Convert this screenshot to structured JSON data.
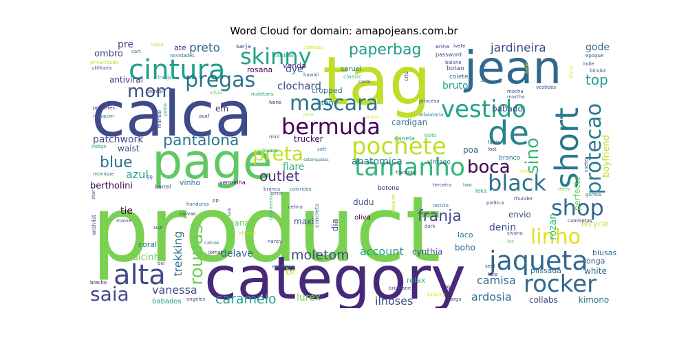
{
  "title": "Word Cloud for domain: amapojeans.com.br",
  "chart_data": {
    "type": "wordcloud",
    "title": "Word Cloud for domain: amapojeans.com.br",
    "words": [
      {
        "text": "product",
        "weight": 1.0,
        "color": "#7ad151"
      },
      {
        "text": "category",
        "weight": 0.78,
        "color": "#482878"
      },
      {
        "text": "tag",
        "weight": 0.7,
        "color": "#bddf26"
      },
      {
        "text": "calca",
        "weight": 0.66,
        "color": "#3e4a89"
      },
      {
        "text": "page",
        "weight": 0.56,
        "color": "#5ec962"
      },
      {
        "text": "jean",
        "weight": 0.55,
        "color": "#31688e"
      },
      {
        "text": "cintura",
        "weight": 0.35,
        "color": "#1f9e89"
      },
      {
        "text": "de",
        "weight": 0.35,
        "color": "#26828e"
      },
      {
        "text": "alta",
        "weight": 0.34,
        "color": "#3e4a89"
      },
      {
        "text": "short",
        "weight": 0.34,
        "color": "#2a788e"
      },
      {
        "text": "jaqueta",
        "weight": 0.33,
        "color": "#31688e"
      },
      {
        "text": "tamanho",
        "weight": 0.32,
        "color": "#35b779"
      },
      {
        "text": "rocker",
        "weight": 0.31,
        "color": "#31688e"
      },
      {
        "text": "bermuda",
        "weight": 0.31,
        "color": "#440154"
      },
      {
        "text": "vestido",
        "weight": 0.31,
        "color": "#20a386"
      },
      {
        "text": "pochete",
        "weight": 0.31,
        "color": "#bddf26"
      },
      {
        "text": "skinny",
        "weight": 0.28,
        "color": "#1fa187"
      },
      {
        "text": "black",
        "weight": 0.28,
        "color": "#2c728e"
      },
      {
        "text": "shop",
        "weight": 0.27,
        "color": "#31688e"
      },
      {
        "text": "linho",
        "weight": 0.27,
        "color": "#dde318"
      },
      {
        "text": "protecao",
        "weight": 0.27,
        "color": "#2a788e"
      },
      {
        "text": "saia",
        "weight": 0.26,
        "color": "#3e4a89"
      },
      {
        "text": "pregas",
        "weight": 0.26,
        "color": "#2c728e"
      },
      {
        "text": "mascara",
        "weight": 0.25,
        "color": "#2c728e"
      },
      {
        "text": "mom",
        "weight": 0.24,
        "color": "#3b528b"
      },
      {
        "text": "preta",
        "weight": 0.24,
        "color": "#bddf26"
      },
      {
        "text": "boca",
        "weight": 0.23,
        "color": "#440154"
      },
      {
        "text": "sino",
        "weight": 0.22,
        "color": "#35b779"
      },
      {
        "text": "roupas",
        "weight": 0.22,
        "color": "#6ece58"
      },
      {
        "text": "paperbag",
        "weight": 0.2,
        "color": "#1f9e89"
      },
      {
        "text": "pantalona",
        "weight": 0.2,
        "color": "#2a788e"
      },
      {
        "text": "blue",
        "weight": 0.2,
        "color": "#2c728e"
      },
      {
        "text": "franja",
        "weight": 0.2,
        "color": "#3e4a89"
      },
      {
        "text": "caramelo",
        "weight": 0.19,
        "color": "#1f9e89"
      },
      {
        "text": "moletom",
        "weight": 0.19,
        "color": "#3e4a89"
      },
      {
        "text": "outlet",
        "weight": 0.18,
        "color": "#482878"
      },
      {
        "text": "top",
        "weight": 0.18,
        "color": "#1f9e89"
      },
      {
        "text": "account",
        "weight": 0.17,
        "color": "#1f9e89"
      },
      {
        "text": "ardosia",
        "weight": 0.17,
        "color": "#2c728e"
      },
      {
        "text": "ilhoses",
        "weight": 0.17,
        "color": "#3e4a89"
      },
      {
        "text": "vanessa",
        "weight": 0.16,
        "color": "#3e4a89"
      },
      {
        "text": "camisa",
        "weight": 0.16,
        "color": "#31688e"
      },
      {
        "text": "preto",
        "weight": 0.16,
        "color": "#31688e"
      },
      {
        "text": "jardineira",
        "weight": 0.16,
        "color": "#3e4a89"
      },
      {
        "text": "clochard",
        "weight": 0.15,
        "color": "#3e4a89"
      },
      {
        "text": "patchwork",
        "weight": 0.15,
        "color": "#3e4a89"
      },
      {
        "text": "azul",
        "weight": 0.15,
        "color": "#20a386"
      },
      {
        "text": "trekking",
        "weight": 0.15,
        "color": "#2c728e"
      },
      {
        "text": "delave",
        "weight": 0.14,
        "color": "#31688e"
      },
      {
        "text": "rozan",
        "weight": 0.14,
        "color": "#35b779"
      },
      {
        "text": "bruto",
        "weight": 0.14,
        "color": "#1fa187"
      },
      {
        "text": "alcinha",
        "weight": 0.13,
        "color": "#6ece58"
      },
      {
        "text": "denin",
        "weight": 0.13,
        "color": "#3b528b"
      },
      {
        "text": "gode",
        "weight": 0.13,
        "color": "#31688e"
      },
      {
        "text": "bertholini",
        "weight": 0.13,
        "color": "#440154"
      },
      {
        "text": "anatomica",
        "weight": 0.13,
        "color": "#2c728e"
      },
      {
        "text": "flare",
        "weight": 0.13,
        "color": "#35b779"
      },
      {
        "text": "lurex",
        "weight": 0.13,
        "color": "#7ad151"
      },
      {
        "text": "boyfriend",
        "weight": 0.13,
        "color": "#bddf26"
      },
      {
        "text": "kimono",
        "weight": 0.12,
        "color": "#2a788e"
      },
      {
        "text": "collabs",
        "weight": 0.12,
        "color": "#3e4a89"
      },
      {
        "text": "dye",
        "weight": 0.12,
        "color": "#3b528b"
      },
      {
        "text": "ombro",
        "weight": 0.12,
        "color": "#3e4a89"
      },
      {
        "text": "envio",
        "weight": 0.12,
        "color": "#3b528b"
      },
      {
        "text": "babado",
        "weight": 0.12,
        "color": "#3e4a89"
      },
      {
        "text": "poa",
        "weight": 0.12,
        "color": "#31688e"
      },
      {
        "text": "tie",
        "weight": 0.12,
        "color": "#440154"
      },
      {
        "text": "boho",
        "weight": 0.12,
        "color": "#31688e"
      },
      {
        "text": "white",
        "weight": 0.12,
        "color": "#2c728e"
      },
      {
        "text": "cardigan",
        "weight": 0.12,
        "color": "#2c728e"
      },
      {
        "text": "perfecto",
        "weight": 0.12,
        "color": "#6ece58"
      },
      {
        "text": "cynthia",
        "weight": 0.11,
        "color": "#3e4a89"
      },
      {
        "text": "pre",
        "weight": 0.11,
        "color": "#3e4a89"
      },
      {
        "text": "antiviral",
        "weight": 0.11,
        "color": "#482878"
      },
      {
        "text": "em",
        "weight": 0.11,
        "color": "#482878"
      },
      {
        "text": "waist",
        "weight": 0.11,
        "color": "#3e4a89"
      },
      {
        "text": "trucker",
        "weight": 0.11,
        "color": "#440154"
      },
      {
        "text": "vinho",
        "weight": 0.1,
        "color": "#2a788e"
      },
      {
        "text": "coral",
        "weight": 0.1,
        "color": "#2a788e"
      },
      {
        "text": "jana",
        "weight": 0.1,
        "color": "#6ece58"
      },
      {
        "text": "maxi",
        "weight": 0.1,
        "color": "#3b528b"
      },
      {
        "text": "stone",
        "weight": 0.1,
        "color": "#2a788e"
      },
      {
        "text": "cropped",
        "weight": 0.1,
        "color": "#2c728e"
      },
      {
        "text": "dudu",
        "weight": 0.1,
        "color": "#3b528b"
      },
      {
        "text": "oliva",
        "weight": 0.09,
        "color": "#440154"
      },
      {
        "text": "dia",
        "weight": 0.1,
        "color": "#3e4a89"
      },
      {
        "text": "br",
        "weight": 0.1,
        "color": "#bddf26"
      },
      {
        "text": "babados",
        "weight": 0.1,
        "color": "#1f9e89"
      },
      {
        "text": "laco",
        "weight": 0.1,
        "color": "#2c728e"
      },
      {
        "text": "relax",
        "weight": 0.1,
        "color": "#35b779"
      },
      {
        "text": "plissada",
        "weight": 0.1,
        "color": "#2c728e"
      },
      {
        "text": "blusas",
        "weight": 0.1,
        "color": "#31688e"
      },
      {
        "text": "longa",
        "weight": 0.1,
        "color": "#3b528b"
      },
      {
        "text": "recycle",
        "weight": 0.1,
        "color": "#bddf26"
      },
      {
        "text": "venda",
        "weight": 0.1,
        "color": "#482878"
      },
      {
        "text": "rosana",
        "weight": 0.1,
        "color": "#440154"
      },
      {
        "text": "ate",
        "weight": 0.1,
        "color": "#482878"
      },
      {
        "text": "sarja",
        "weight": 0.07,
        "color": "#3e4a89"
      },
      {
        "text": "saruel",
        "weight": 0.08,
        "color": "#2c728e"
      },
      {
        "text": "botao",
        "weight": 0.08,
        "color": "#3e4a89"
      },
      {
        "text": "colete",
        "weight": 0.08,
        "color": "#2c728e"
      },
      {
        "text": "vintage",
        "weight": 0.07,
        "color": "#2c728e"
      },
      {
        "text": "canela",
        "weight": 0.08,
        "color": "#1f9e89"
      },
      {
        "text": "branco",
        "weight": 0.07,
        "color": "#2c728e"
      },
      {
        "text": "leka",
        "weight": 0.07,
        "color": "#20a386"
      },
      {
        "text": "botone",
        "weight": 0.08,
        "color": "#482878"
      },
      {
        "text": "concreto",
        "weight": 0.07,
        "color": "#2c728e"
      },
      {
        "text": "vermelha",
        "weight": 0.07,
        "color": "#440154"
      },
      {
        "text": "barrel",
        "weight": 0.07,
        "color": "#3e4a89"
      },
      {
        "text": "hawaii",
        "weight": 0.06,
        "color": "#2c728e"
      },
      {
        "text": "classic",
        "weight": 0.06,
        "color": "#35b779"
      },
      {
        "text": "balone",
        "weight": 0.06,
        "color": "#3e4a89"
      },
      {
        "text": "password",
        "weight": 0.06,
        "color": "#3e4a89"
      },
      {
        "text": "ivete",
        "weight": 0.06,
        "color": "#482878"
      },
      {
        "text": "anna",
        "weight": 0.06,
        "color": "#3e4a89"
      },
      {
        "text": "novidades",
        "weight": 0.06,
        "color": "#2c728e"
      },
      {
        "text": "rainbow",
        "weight": 0.06,
        "color": "#1f9e89"
      },
      {
        "text": "camisas",
        "weight": 0.06,
        "color": "#dde318"
      },
      {
        "text": "copia",
        "weight": 0.06,
        "color": "#bddf26"
      },
      {
        "text": "cart",
        "weight": 0.06,
        "color": "#2c728e"
      },
      {
        "text": "privacidade",
        "weight": 0.06,
        "color": "#bddf26"
      },
      {
        "text": "utilitaria",
        "weight": 0.06,
        "color": "#3e4a89"
      },
      {
        "text": "franjas",
        "weight": 0.06,
        "color": "#20a386"
      },
      {
        "text": "moletons",
        "weight": 0.06,
        "color": "#1f9e89"
      },
      {
        "text": "silvia",
        "weight": 0.06,
        "color": "#5ec962"
      },
      {
        "text": "boreal",
        "weight": 0.06,
        "color": "#3e4a89"
      },
      {
        "text": "pochetes",
        "weight": 0.06,
        "color": "#482878"
      },
      {
        "text": "paola",
        "weight": 0.06,
        "color": "#1f9e89"
      },
      {
        "text": "nanquim",
        "weight": 0.06,
        "color": "#2c728e"
      },
      {
        "text": "manual",
        "weight": 0.06,
        "color": "#3e4a89"
      },
      {
        "text": "avaf",
        "weight": 0.06,
        "color": "#482878"
      },
      {
        "text": "None",
        "weight": 0.06,
        "color": "#482878"
      },
      {
        "text": "peca",
        "weight": 0.06,
        "color": "#bddf26"
      },
      {
        "text": "neutro",
        "weight": 0.06,
        "color": "#dde318"
      },
      {
        "text": "martha",
        "weight": 0.06,
        "color": "#3e4a89"
      },
      {
        "text": "mocha",
        "weight": 0.06,
        "color": "#3e4a89"
      },
      {
        "text": "vestidos",
        "weight": 0.06,
        "color": "#3e4a89"
      },
      {
        "text": "princesa",
        "weight": 0.06,
        "color": "#3e4a89"
      },
      {
        "text": "alfaiataria",
        "weight": 0.06,
        "color": "#2c728e"
      },
      {
        "text": "kioto",
        "weight": 0.06,
        "color": "#35b779"
      },
      {
        "text": "fabia",
        "weight": 0.06,
        "color": "#3e4a89"
      },
      {
        "text": "lost",
        "weight": 0.06,
        "color": "#482878"
      },
      {
        "text": "soft",
        "weight": 0.06,
        "color": "#2c728e"
      },
      {
        "text": "blusao",
        "weight": 0.06,
        "color": "#20a386"
      },
      {
        "text": "estampadas",
        "weight": 0.06,
        "color": "#2c728e"
      },
      {
        "text": "mini",
        "weight": 0.06,
        "color": "#3e4a89"
      },
      {
        "text": "indigo",
        "weight": 0.06,
        "color": "#20a386"
      },
      {
        "text": "monique",
        "weight": 0.06,
        "color": "#2c728e"
      },
      {
        "text": "branca",
        "weight": 0.06,
        "color": "#3e4a89"
      },
      {
        "text": "coloridas",
        "weight": 0.06,
        "color": "#2c728e"
      },
      {
        "text": "franzido",
        "weight": 0.06,
        "color": "#3e4a89"
      },
      {
        "text": "terceira",
        "weight": 0.06,
        "color": "#3e4a89"
      },
      {
        "text": "two",
        "weight": 0.06,
        "color": "#2c728e"
      },
      {
        "text": "manu",
        "weight": 0.06,
        "color": "#dde318"
      },
      {
        "text": "three",
        "weight": 0.06,
        "color": "#6ece58"
      },
      {
        "text": "gomos",
        "weight": 0.06,
        "color": "#2c728e"
      },
      {
        "text": "thunder",
        "weight": 0.06,
        "color": "#3e4a89"
      },
      {
        "text": "politica",
        "weight": 0.06,
        "color": "#3e4a89"
      },
      {
        "text": "camisetas",
        "weight": 0.06,
        "color": "#482878"
      },
      {
        "text": "recicle",
        "weight": 0.06,
        "color": "#2c728e"
      },
      {
        "text": "sivana",
        "weight": 0.06,
        "color": "#3e4a89"
      },
      {
        "text": "los",
        "weight": 0.06,
        "color": "#6ece58"
      },
      {
        "text": "dark",
        "weight": 0.06,
        "color": "#3e4a89"
      },
      {
        "text": "seul",
        "weight": 0.06,
        "color": "#3e4a89"
      },
      {
        "text": "lace",
        "weight": 0.06,
        "color": "#482878"
      },
      {
        "text": "baggy",
        "weight": 0.06,
        "color": "#482878"
      },
      {
        "text": "bricklane",
        "weight": 0.06,
        "color": "#3e4a89"
      },
      {
        "text": "bailarina",
        "weight": 0.06,
        "color": "#dde318"
      },
      {
        "text": "cargo",
        "weight": 0.06,
        "color": "#3e4a89"
      },
      {
        "text": "angeles",
        "weight": 0.06,
        "color": "#3e4a89"
      },
      {
        "text": "bel",
        "weight": 0.06,
        "color": "#3e4a89"
      },
      {
        "text": "brecho",
        "weight": 0.06,
        "color": "#440154"
      },
      {
        "text": "star",
        "weight": 0.06,
        "color": "#3e4a89"
      },
      {
        "text": "wishlist",
        "weight": 0.06,
        "color": "#3e4a89"
      },
      {
        "text": "maine",
        "weight": 0.06,
        "color": "#3e4a89"
      },
      {
        "text": "suzi",
        "weight": 0.06,
        "color": "#3e4a89"
      },
      {
        "text": "carvao",
        "weight": 0.06,
        "color": "#482878"
      },
      {
        "text": "calcas",
        "weight": 0.06,
        "color": "#2c728e"
      },
      {
        "text": "jornal",
        "weight": 0.06,
        "color": "#482878"
      },
      {
        "text": "vanesssa",
        "weight": 0.06,
        "color": "#2c728e"
      },
      {
        "text": "nancy",
        "weight": 0.06,
        "color": "#3e4a89"
      },
      {
        "text": "ottawa",
        "weight": 0.06,
        "color": "#bddf26"
      },
      {
        "text": "sale",
        "weight": 0.06,
        "color": "#3e4a89"
      },
      {
        "text": "tingimento",
        "weight": 0.06,
        "color": "#35b779"
      },
      {
        "text": "celina",
        "weight": 0.06,
        "color": "#3e4a89"
      },
      {
        "text": "terra",
        "weight": 0.06,
        "color": "#3e4a89"
      },
      {
        "text": "pp",
        "weight": 0.06,
        "color": "#3e4a89"
      },
      {
        "text": "honduras",
        "weight": 0.06,
        "color": "#2c728e"
      },
      {
        "text": "medium",
        "weight": 0.06,
        "color": "#bddf26"
      },
      {
        "text": "carol",
        "weight": 0.06,
        "color": "#3e4a89"
      },
      {
        "text": "cris",
        "weight": 0.06,
        "color": "#3e4a89"
      },
      {
        "text": "kamalys",
        "weight": 0.06,
        "color": "#2c728e"
      },
      {
        "text": "belle",
        "weight": 0.06,
        "color": "#dde318"
      },
      {
        "text": "epoque",
        "weight": 0.06,
        "color": "#3e4a89"
      },
      {
        "text": "indie",
        "weight": 0.06,
        "color": "#3e4a89"
      },
      {
        "text": "bicolor",
        "weight": 0.06,
        "color": "#3e4a89"
      },
      {
        "text": "sueter",
        "weight": 0.06,
        "color": "#3e4a89"
      },
      {
        "text": "duna",
        "weight": 0.06,
        "color": "#dde318"
      },
      {
        "text": "gg",
        "weight": 0.06,
        "color": "#3e4a89"
      }
    ]
  }
}
